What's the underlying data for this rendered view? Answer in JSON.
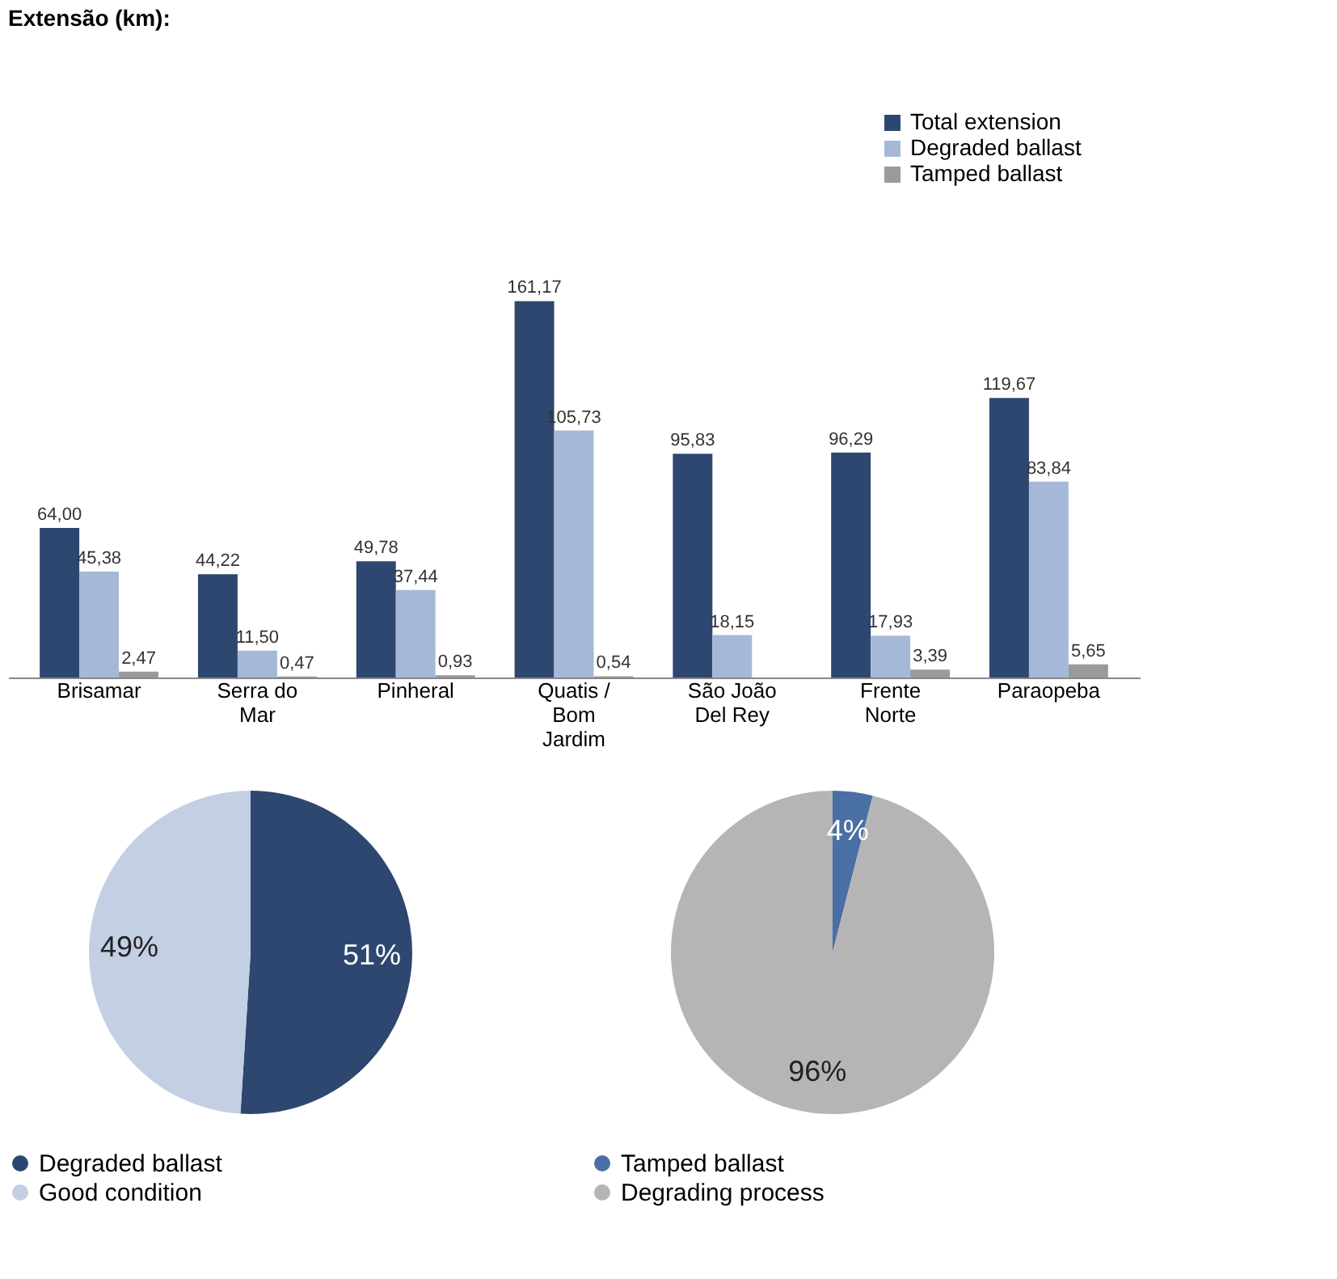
{
  "chart_data": [
    {
      "type": "bar",
      "title": "Extensão (km):",
      "categories": [
        "Brisamar",
        "Serra do Mar",
        "Pinheral",
        "Quatis / Bom Jardim",
        "São João Del Rey",
        "Frente Norte",
        "Paraopeba"
      ],
      "series": [
        {
          "name": "Total extension",
          "color": "#2e4770",
          "values": [
            64.0,
            44.22,
            49.78,
            161.17,
            95.83,
            96.29,
            119.67
          ],
          "value_labels": [
            "64,00",
            "44,22",
            "49,78",
            "161,17",
            "95,83",
            "96,29",
            "119,67"
          ]
        },
        {
          "name": "Degraded ballast",
          "color": "#a6b8d8",
          "values": [
            45.38,
            11.5,
            37.44,
            105.73,
            18.15,
            17.93,
            83.84
          ],
          "value_labels": [
            "45,38",
            "11,50",
            "37,44",
            "105,73",
            "18,15",
            "17,93",
            "83,84"
          ]
        },
        {
          "name": "Tamped ballast",
          "color": "#9a9a9a",
          "values": [
            2.47,
            0.47,
            0.93,
            0.54,
            null,
            3.39,
            5.65
          ],
          "value_labels": [
            "2,47",
            "0,47",
            "0,93",
            "0,54",
            null,
            "3,39",
            "5,65"
          ]
        }
      ],
      "legend": "top right"
    },
    {
      "type": "pie",
      "categories": [
        "Degraded ballast",
        "Good condition"
      ],
      "values": [
        51,
        49
      ],
      "colors": [
        "#2e4770",
        "#c3cfe3"
      ],
      "value_labels": [
        "51%",
        "49%"
      ],
      "legend": "bottom"
    },
    {
      "type": "pie",
      "categories": [
        "Tamped ballast",
        "Degrading process"
      ],
      "values": [
        4,
        96
      ],
      "colors": [
        "#4a6fa5",
        "#b5b5b5"
      ],
      "value_labels": [
        "4%",
        "96%"
      ],
      "legend": "bottom"
    }
  ]
}
